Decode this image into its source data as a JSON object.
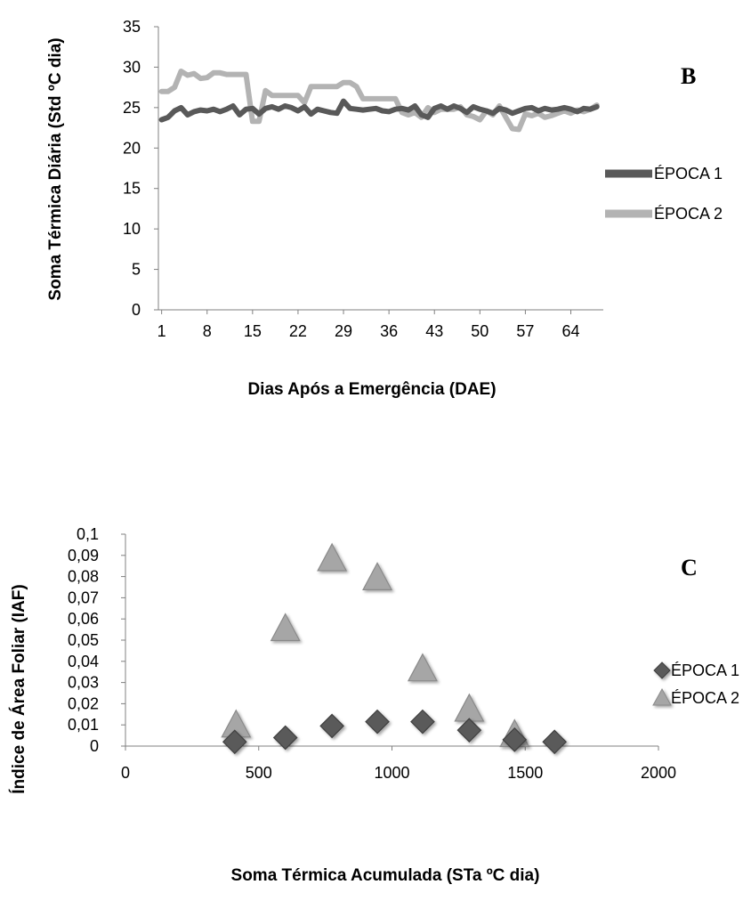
{
  "chart_data": [
    {
      "type": "line",
      "panel_label": "B",
      "xlabel": "Dias Após a Emergência (DAE)",
      "ylabel": "Soma Térmica Diária (Std ºC dia)",
      "ylim": [
        0,
        35
      ],
      "y_ticks": [
        "0",
        "5",
        "10",
        "15",
        "20",
        "25",
        "30",
        "35"
      ],
      "x_tick_labels": [
        "1",
        "8",
        "15",
        "22",
        "29",
        "36",
        "43",
        "50",
        "57",
        "64"
      ],
      "x_ticks": [
        1,
        8,
        15,
        22,
        29,
        36,
        43,
        50,
        57,
        64
      ],
      "xlim": [
        0.5,
        69
      ],
      "grid": false,
      "legend_position": "right",
      "series": [
        {
          "name": "ÉPOCA 1",
          "color": "#595959",
          "x": [
            1,
            2,
            3,
            4,
            5,
            6,
            7,
            8,
            9,
            10,
            11,
            12,
            13,
            14,
            15,
            16,
            17,
            18,
            19,
            20,
            21,
            22,
            23,
            24,
            25,
            26,
            27,
            28,
            29,
            30,
            31,
            32,
            33,
            34,
            35,
            36,
            37,
            38,
            39,
            40,
            41,
            42,
            43,
            44,
            45,
            46,
            47,
            48,
            49,
            50,
            51,
            52,
            53,
            54,
            55,
            56,
            57,
            58,
            59,
            60,
            61,
            62,
            63,
            64,
            65,
            66,
            67,
            68
          ],
          "values": [
            23.5,
            23.8,
            24.6,
            25.0,
            24.1,
            24.5,
            24.7,
            24.6,
            24.8,
            24.5,
            24.8,
            25.2,
            24.1,
            24.8,
            24.9,
            24.2,
            24.9,
            25.1,
            24.8,
            25.2,
            25.0,
            24.6,
            25.1,
            24.2,
            24.8,
            24.6,
            24.4,
            24.3,
            25.8,
            24.9,
            24.8,
            24.7,
            24.8,
            24.9,
            24.6,
            24.5,
            24.8,
            24.9,
            24.7,
            25.2,
            24.1,
            23.8,
            24.9,
            25.2,
            24.8,
            25.2,
            24.9,
            24.4,
            25.1,
            24.8,
            24.6,
            24.3,
            24.9,
            24.7,
            24.3,
            24.6,
            24.9,
            25.0,
            24.6,
            24.9,
            24.7,
            24.8,
            25.0,
            24.8,
            24.5,
            24.9,
            24.8,
            25.1
          ]
        },
        {
          "name": "ÉPOCA 2",
          "color": "#b3b3b3",
          "x": [
            1,
            2,
            3,
            4,
            5,
            6,
            7,
            8,
            9,
            10,
            11,
            12,
            13,
            14,
            15,
            16,
            17,
            18,
            19,
            20,
            21,
            22,
            23,
            24,
            25,
            26,
            27,
            28,
            29,
            30,
            31,
            32,
            33,
            34,
            35,
            36,
            37,
            38,
            39,
            40,
            41,
            42,
            43,
            44,
            45,
            46,
            47,
            48,
            49,
            50,
            51,
            52,
            53,
            54,
            55,
            56,
            57,
            58,
            59,
            60,
            61,
            62,
            63,
            64,
            65,
            66,
            67,
            68
          ],
          "values": [
            27.0,
            27.0,
            27.5,
            29.5,
            29.0,
            29.2,
            28.6,
            28.7,
            29.3,
            29.3,
            29.1,
            29.1,
            29.1,
            29.1,
            23.3,
            23.3,
            27.1,
            26.5,
            26.5,
            26.5,
            26.5,
            26.5,
            25.6,
            27.6,
            27.6,
            27.6,
            27.6,
            27.6,
            28.1,
            28.1,
            27.6,
            26.1,
            26.1,
            26.1,
            26.1,
            26.1,
            26.1,
            24.4,
            24.1,
            24.4,
            23.8,
            25.0,
            24.4,
            24.8,
            24.8,
            24.8,
            25.1,
            24.1,
            23.9,
            23.5,
            24.6,
            24.1,
            25.2,
            23.8,
            22.4,
            22.3,
            24.2,
            24.0,
            24.3,
            23.8,
            24.0,
            24.3,
            24.6,
            24.3,
            24.7,
            24.5,
            24.8,
            25.3
          ]
        }
      ]
    },
    {
      "type": "scatter",
      "panel_label": "C",
      "xlabel": "Soma Térmica Acumulada (STa ºC dia)",
      "ylabel": "Índice de Área Foliar (IAF)",
      "xlim": [
        0,
        2000
      ],
      "ylim": [
        0,
        0.1
      ],
      "x_ticks": [
        "0",
        "500",
        "1000",
        "1500",
        "2000"
      ],
      "y_ticks": [
        "0",
        "0,01",
        "0,02",
        "0,03",
        "0,04",
        "0,05",
        "0,06",
        "0,07",
        "0,08",
        "0,09",
        "0,1"
      ],
      "grid": false,
      "legend_position": "right",
      "series": [
        {
          "name": "ÉPOCA 1",
          "marker": "diamond",
          "color": "#5a5a5a",
          "x": [
            410,
            600,
            775,
            945,
            1115,
            1290,
            1460,
            1610
          ],
          "values": [
            0.002,
            0.004,
            0.0095,
            0.0115,
            0.0115,
            0.0075,
            0.003,
            0.002
          ]
        },
        {
          "name": "ÉPOCA 2",
          "marker": "triangle",
          "color": "#a6a6a6",
          "x": [
            415,
            600,
            775,
            945,
            1115,
            1290,
            1460
          ],
          "values": [
            0.0085,
            0.054,
            0.087,
            0.078,
            0.035,
            0.016,
            0.004
          ]
        }
      ]
    }
  ]
}
